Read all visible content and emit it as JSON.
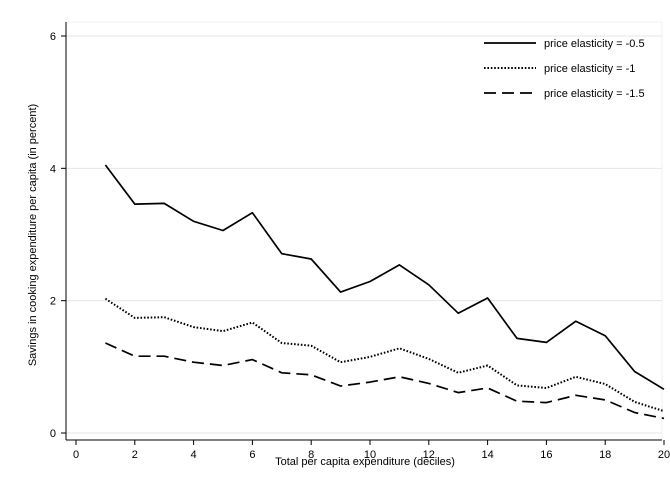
{
  "chart_data": {
    "type": "line",
    "title": "",
    "xlabel": "Total per capita expenditure (deciles)",
    "ylabel": "Savings in cooking expenditure per capita (in percent)",
    "xlim": [
      0,
      20
    ],
    "ylim": [
      0,
      6
    ],
    "xticks": [
      0,
      2,
      4,
      6,
      8,
      10,
      12,
      14,
      16,
      18,
      20
    ],
    "yticks": [
      0,
      2,
      4,
      6
    ],
    "grid": "horizontal",
    "legend_position": "top-right",
    "x": [
      1,
      2,
      3,
      4,
      5,
      6,
      7,
      8,
      9,
      10,
      11,
      12,
      13,
      14,
      15,
      16,
      17,
      18,
      19,
      20
    ],
    "series": [
      {
        "name": "price elasticity = -0.5",
        "line_style": "solid",
        "color": "#000000",
        "values": [
          4.05,
          3.46,
          3.47,
          3.2,
          3.06,
          3.33,
          2.71,
          2.63,
          2.13,
          2.29,
          2.54,
          2.24,
          1.81,
          2.04,
          1.43,
          1.37,
          1.69,
          1.47,
          0.93,
          0.66
        ]
      },
      {
        "name": "price elasticity = -1",
        "line_style": "dotted",
        "color": "#000000",
        "values": [
          2.03,
          1.74,
          1.75,
          1.6,
          1.54,
          1.67,
          1.36,
          1.32,
          1.07,
          1.15,
          1.28,
          1.12,
          0.91,
          1.02,
          0.72,
          0.68,
          0.85,
          0.74,
          0.47,
          0.33
        ]
      },
      {
        "name": "price elasticity = -1.5",
        "line_style": "dashed",
        "color": "#000000",
        "values": [
          1.36,
          1.16,
          1.16,
          1.07,
          1.02,
          1.11,
          0.91,
          0.88,
          0.71,
          0.77,
          0.85,
          0.75,
          0.61,
          0.68,
          0.48,
          0.46,
          0.57,
          0.5,
          0.31,
          0.22
        ]
      }
    ]
  }
}
